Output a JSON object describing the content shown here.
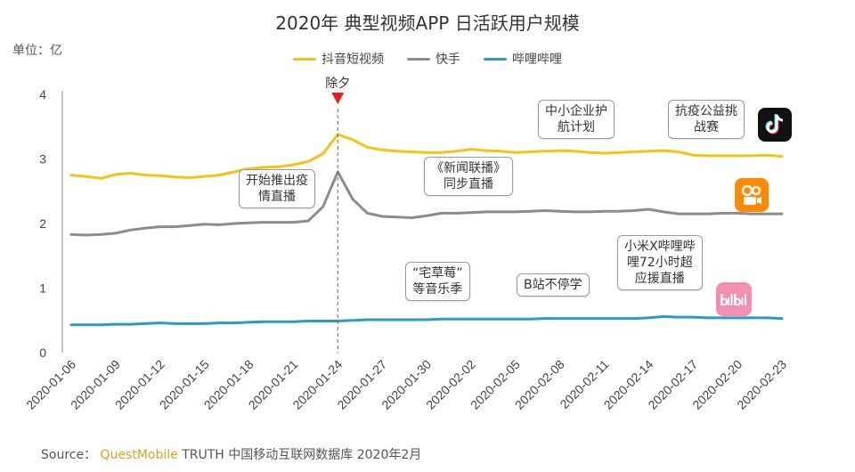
{
  "header": {
    "title": "2020年 典型视频APP 日活跃用户规模",
    "unit": "单位：亿"
  },
  "legend": [
    {
      "label": "抖音短视频",
      "color": "#F2C418"
    },
    {
      "label": "快手",
      "color": "#8C8C8C"
    },
    {
      "label": "哔哩哔哩",
      "color": "#2A9DB8"
    }
  ],
  "source": {
    "prefix": "Source：",
    "brand": "QuestMobile",
    "rest": " TRUTH 中国移动互联网数据库 2020年2月"
  },
  "annotations": {
    "eve": "除夕",
    "epidemic_live": "开始推出疫\n情直播",
    "news_sync": "《新闻联播》\n同步直播",
    "smb_help": "中小企业护\n航计划",
    "antiepidemic": "抗疫公益挑\n战赛",
    "zhai_cao": "“宅草莓”\n等音乐季",
    "bzhan_school": "B站不停学",
    "xiaomi_live": "小米X哔哩哔\n哩72小时超\n应援直播"
  },
  "icons": {
    "douyin": "douyin-logo-icon",
    "kuaishou": "kuaishou-logo-icon",
    "bilibili": "bilibili-logo-icon"
  },
  "chart_data": {
    "type": "line",
    "x": [
      "2020-01-06",
      "2020-01-07",
      "2020-01-08",
      "2020-01-09",
      "2020-01-10",
      "2020-01-11",
      "2020-01-12",
      "2020-01-13",
      "2020-01-14",
      "2020-01-15",
      "2020-01-16",
      "2020-01-17",
      "2020-01-18",
      "2020-01-19",
      "2020-01-20",
      "2020-01-21",
      "2020-01-22",
      "2020-01-23",
      "2020-01-24",
      "2020-01-25",
      "2020-01-26",
      "2020-01-27",
      "2020-01-28",
      "2020-01-29",
      "2020-01-30",
      "2020-01-31",
      "2020-02-01",
      "2020-02-02",
      "2020-02-03",
      "2020-02-04",
      "2020-02-05",
      "2020-02-06",
      "2020-02-07",
      "2020-02-08",
      "2020-02-09",
      "2020-02-10",
      "2020-02-11",
      "2020-02-12",
      "2020-02-13",
      "2020-02-14",
      "2020-02-15",
      "2020-02-16",
      "2020-02-17",
      "2020-02-18",
      "2020-02-19",
      "2020-02-20",
      "2020-02-21",
      "2020-02-22",
      "2020-02-23"
    ],
    "tick_labels": [
      "2020-01-06",
      "2020-01-09",
      "2020-01-12",
      "2020-01-15",
      "2020-01-18",
      "2020-01-21",
      "2020-01-24",
      "2020-01-27",
      "2020-01-30",
      "2020-02-02",
      "2020-02-05",
      "2020-02-08",
      "2020-02-11",
      "2020-02-14",
      "2020-02-17",
      "2020-02-20",
      "2020-02-23"
    ],
    "series": [
      {
        "name": "抖音短视频",
        "color": "#F2C418",
        "values": [
          2.75,
          2.73,
          2.7,
          2.76,
          2.78,
          2.75,
          2.74,
          2.72,
          2.71,
          2.73,
          2.75,
          2.8,
          2.85,
          2.87,
          2.88,
          2.91,
          2.96,
          3.08,
          3.38,
          3.3,
          3.18,
          3.14,
          3.12,
          3.11,
          3.1,
          3.1,
          3.12,
          3.15,
          3.13,
          3.12,
          3.1,
          3.11,
          3.12,
          3.13,
          3.12,
          3.1,
          3.09,
          3.1,
          3.11,
          3.12,
          3.13,
          3.11,
          3.06,
          3.05,
          3.05,
          3.05,
          3.05,
          3.06,
          3.04
        ]
      },
      {
        "name": "快手",
        "color": "#8C8C8C",
        "values": [
          1.83,
          1.82,
          1.83,
          1.85,
          1.9,
          1.93,
          1.95,
          1.95,
          1.97,
          1.99,
          1.98,
          2.0,
          2.01,
          2.02,
          2.02,
          2.02,
          2.04,
          2.26,
          2.8,
          2.38,
          2.16,
          2.11,
          2.1,
          2.09,
          2.12,
          2.16,
          2.16,
          2.17,
          2.18,
          2.18,
          2.18,
          2.19,
          2.2,
          2.19,
          2.18,
          2.18,
          2.19,
          2.19,
          2.2,
          2.22,
          2.18,
          2.15,
          2.15,
          2.15,
          2.16,
          2.16,
          2.15,
          2.15,
          2.15
        ]
      },
      {
        "name": "哔哩哔哩",
        "color": "#2A9DB8",
        "values": [
          0.43,
          0.43,
          0.43,
          0.44,
          0.44,
          0.45,
          0.46,
          0.45,
          0.45,
          0.45,
          0.46,
          0.46,
          0.47,
          0.48,
          0.48,
          0.48,
          0.49,
          0.49,
          0.49,
          0.5,
          0.51,
          0.51,
          0.51,
          0.51,
          0.51,
          0.52,
          0.52,
          0.52,
          0.52,
          0.52,
          0.52,
          0.52,
          0.53,
          0.53,
          0.53,
          0.53,
          0.53,
          0.53,
          0.53,
          0.54,
          0.56,
          0.55,
          0.55,
          0.54,
          0.54,
          0.54,
          0.54,
          0.54,
          0.53
        ]
      }
    ],
    "yticks": [
      0,
      1,
      2,
      3,
      4
    ],
    "ylim": [
      0,
      4
    ],
    "event_marker": "2020-01-24",
    "grid": false,
    "legend_position": "top-center"
  }
}
